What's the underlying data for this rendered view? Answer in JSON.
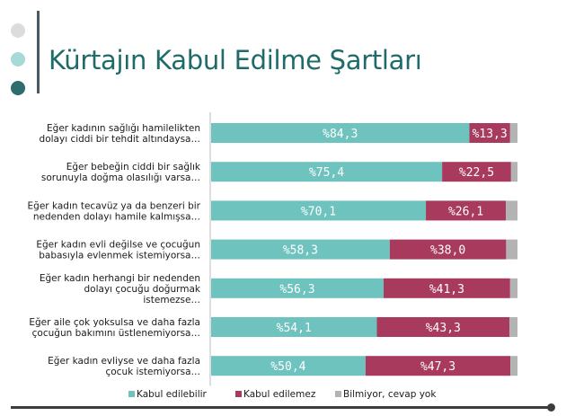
{
  "slide": {
    "title": "Kürtajın Kabul Edilme Şartları",
    "accent_colors": [
      "#dcdcdc",
      "#a7d9d6",
      "#2f6c6e"
    ]
  },
  "chart_data": {
    "type": "bar",
    "orientation": "horizontal",
    "stacked": true,
    "percent_prefix": "%",
    "decimal_separator": ",",
    "categories": [
      [
        "Eğer kadının sağlığı hamilelikten",
        "dolayı ciddi bir tehdit altındaysa…"
      ],
      [
        "Eğer bebeğin ciddi bir sağlık",
        "sorunuyla doğma olasılığı varsa…"
      ],
      [
        "Eğer kadın tecavüz ya da benzeri bir",
        "nedenden dolayı hamile kalmışsa…"
      ],
      [
        "Eğer kadın evli değilse ve çocuğun",
        "babasıyla evlenmek istemiyorsa…"
      ],
      [
        "Eğer kadın herhangi bir nedenden",
        "dolayı çocuğu doğurmak",
        "istemezse…"
      ],
      [
        "Eğer aile çok yoksulsa ve daha fazla",
        "çocuğun bakımını üstlenemiyorsa…"
      ],
      [
        "Eğer kadın evliyse ve daha fazla",
        "çocuk istemiyorsa…"
      ]
    ],
    "series": [
      {
        "name": "Kabul edilebilir",
        "color": "#6fc3bf",
        "values": [
          84.3,
          75.4,
          70.1,
          58.3,
          56.3,
          54.1,
          50.4
        ]
      },
      {
        "name": "Kabul edilemez",
        "color": "#a83a5e",
        "values": [
          13.3,
          22.5,
          26.1,
          38.0,
          41.3,
          43.3,
          47.3
        ]
      },
      {
        "name": "Bilmiyor, cevap yok",
        "color": "#b3b3b3",
        "values": [
          2.4,
          2.1,
          3.8,
          3.7,
          2.4,
          2.6,
          2.3
        ]
      }
    ],
    "labeled_series": [
      0,
      1
    ],
    "xlim": [
      0,
      100
    ],
    "legend_position": "bottom",
    "grid": false
  }
}
